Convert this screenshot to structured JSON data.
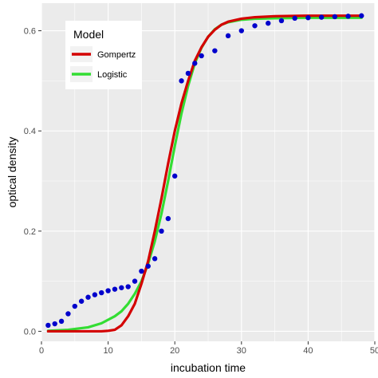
{
  "chart_data": {
    "type": "scatter",
    "xlabel": "incubation time",
    "ylabel": "optical density",
    "xlim": [
      0,
      50
    ],
    "ylim": [
      -0.02,
      0.655
    ],
    "x_ticks": [
      0,
      10,
      20,
      30,
      40,
      50
    ],
    "x_tick_labels": [
      "0",
      "10",
      "20",
      "30",
      "40",
      "50"
    ],
    "y_ticks": [
      0.0,
      0.2,
      0.4,
      0.6
    ],
    "y_tick_labels": [
      "0.0",
      "0.2",
      "0.4",
      "0.6"
    ],
    "grid": true,
    "panel_background": "#ebebeb",
    "gridline_color": "#ffffff",
    "legend": {
      "title": "Model",
      "position": "top-left",
      "entries": [
        {
          "label": "Gompertz",
          "color": "#d40000"
        },
        {
          "label": "Logistic",
          "color": "#33dd33"
        }
      ]
    },
    "points": {
      "color": "#0000cc",
      "x": [
        1,
        2,
        3,
        4,
        5,
        6,
        7,
        8,
        9,
        10,
        11,
        12,
        13,
        14,
        15,
        16,
        17,
        18,
        19,
        20,
        21,
        22,
        23,
        24,
        26,
        28,
        30,
        32,
        34,
        36,
        38,
        40,
        42,
        44,
        46,
        48
      ],
      "y": [
        0.012,
        0.015,
        0.02,
        0.035,
        0.05,
        0.06,
        0.068,
        0.073,
        0.077,
        0.081,
        0.084,
        0.087,
        0.089,
        0.1,
        0.12,
        0.13,
        0.145,
        0.2,
        0.225,
        0.31,
        0.5,
        0.515,
        0.535,
        0.55,
        0.56,
        0.59,
        0.6,
        0.61,
        0.615,
        0.62,
        0.625,
        0.626,
        0.627,
        0.628,
        0.629,
        0.63
      ],
      "y_series_note": ""
    },
    "series": [
      {
        "name": "Gompertz",
        "color": "#d40000",
        "x": [
          1,
          5,
          9,
          10,
          11,
          12,
          13,
          14,
          15,
          16,
          17,
          18,
          19,
          20,
          21,
          22,
          23,
          24,
          25,
          26,
          27,
          28,
          30,
          32,
          35,
          40,
          45,
          48
        ],
        "y": [
          0.0,
          0.0,
          0.0,
          0.001,
          0.003,
          0.012,
          0.03,
          0.055,
          0.095,
          0.14,
          0.2,
          0.265,
          0.335,
          0.4,
          0.455,
          0.5,
          0.54,
          0.567,
          0.588,
          0.602,
          0.612,
          0.618,
          0.624,
          0.627,
          0.629,
          0.63,
          0.63,
          0.63
        ]
      },
      {
        "name": "Logistic",
        "color": "#33dd33",
        "x": [
          1,
          4,
          7,
          9,
          11,
          12,
          13,
          14,
          15,
          16,
          17,
          18,
          19,
          20,
          21,
          22,
          23,
          24,
          25,
          26,
          27,
          28,
          30,
          32,
          35,
          40,
          45,
          48
        ],
        "y": [
          0.001,
          0.003,
          0.008,
          0.016,
          0.03,
          0.04,
          0.055,
          0.075,
          0.1,
          0.135,
          0.18,
          0.235,
          0.3,
          0.37,
          0.435,
          0.49,
          0.535,
          0.566,
          0.588,
          0.603,
          0.612,
          0.617,
          0.622,
          0.624,
          0.625,
          0.626,
          0.626,
          0.626
        ]
      }
    ]
  }
}
